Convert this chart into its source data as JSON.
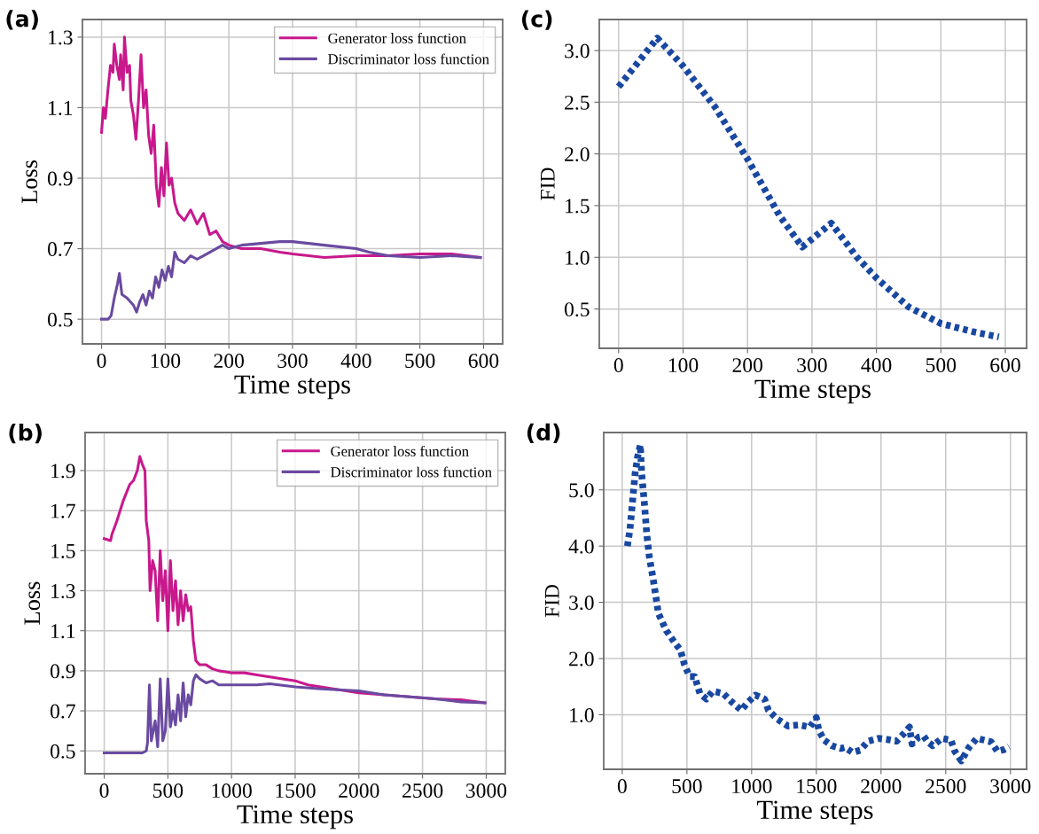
{
  "chart_data": [
    {
      "type": "line",
      "title": "(a)",
      "xlabel": "Time steps",
      "ylabel": "Loss",
      "xlim": [
        -30,
        630
      ],
      "ylim": [
        0.43,
        1.35
      ],
      "xticks": [
        0,
        100,
        200,
        300,
        400,
        500,
        600
      ],
      "yticks": [
        0.5,
        0.7,
        0.9,
        1.1,
        1.3
      ],
      "grid": true,
      "legend": "top right",
      "line_style": "solid",
      "series": [
        {
          "name": "Generator loss function",
          "color": "#c8188c",
          "x": [
            0,
            3,
            6,
            10,
            14,
            18,
            20,
            24,
            28,
            30,
            34,
            36,
            40,
            44,
            46,
            50,
            54,
            58,
            62,
            66,
            70,
            74,
            78,
            82,
            86,
            90,
            94,
            98,
            102,
            106,
            110,
            115,
            120,
            130,
            140,
            150,
            160,
            170,
            180,
            190,
            200,
            220,
            250,
            280,
            300,
            350,
            400,
            450,
            500,
            550,
            595
          ],
          "values": [
            1.03,
            1.1,
            1.07,
            1.15,
            1.22,
            1.2,
            1.28,
            1.22,
            1.18,
            1.25,
            1.15,
            1.3,
            1.2,
            1.22,
            1.12,
            1.08,
            1.01,
            1.12,
            1.25,
            1.1,
            1.15,
            1.02,
            0.97,
            1.05,
            0.88,
            0.82,
            0.93,
            0.85,
            1.0,
            0.88,
            0.9,
            0.83,
            0.8,
            0.78,
            0.81,
            0.77,
            0.8,
            0.74,
            0.75,
            0.72,
            0.71,
            0.7,
            0.7,
            0.69,
            0.685,
            0.675,
            0.68,
            0.68,
            0.685,
            0.685,
            0.675
          ]
        },
        {
          "name": "Discriminator loss function",
          "color": "#6a4aa0",
          "x": [
            0,
            10,
            15,
            20,
            25,
            28,
            32,
            40,
            50,
            55,
            60,
            65,
            70,
            75,
            80,
            85,
            90,
            95,
            100,
            105,
            110,
            115,
            120,
            130,
            140,
            150,
            160,
            170,
            180,
            190,
            200,
            220,
            250,
            280,
            300,
            350,
            400,
            420,
            450,
            500,
            550,
            595
          ],
          "values": [
            0.5,
            0.5,
            0.51,
            0.56,
            0.6,
            0.63,
            0.57,
            0.56,
            0.54,
            0.52,
            0.55,
            0.57,
            0.54,
            0.58,
            0.56,
            0.62,
            0.59,
            0.64,
            0.61,
            0.65,
            0.62,
            0.69,
            0.67,
            0.66,
            0.68,
            0.67,
            0.68,
            0.69,
            0.7,
            0.71,
            0.7,
            0.71,
            0.715,
            0.72,
            0.72,
            0.71,
            0.7,
            0.69,
            0.68,
            0.675,
            0.68,
            0.675
          ]
        }
      ]
    },
    {
      "type": "line",
      "title": "(c)",
      "xlabel": "Time steps",
      "ylabel": "FID",
      "xlim": [
        -30,
        633
      ],
      "ylim": [
        0.12,
        3.3
      ],
      "xticks": [
        0,
        100,
        200,
        300,
        400,
        500,
        600
      ],
      "yticks": [
        0.5,
        {
          "value": 1,
          "label": "1.0"
        },
        1.5,
        {
          "value": 2,
          "label": "2.0"
        },
        2.5,
        {
          "value": 3,
          "label": "3.0"
        }
      ],
      "grid": true,
      "line_style": "dotted",
      "series": [
        {
          "color": "#1848a0",
          "x": [
            0,
            60,
            100,
            150,
            200,
            250,
            285,
            330,
            370,
            400,
            450,
            500,
            550,
            590
          ],
          "values": [
            2.65,
            3.12,
            2.85,
            2.45,
            1.95,
            1.4,
            1.1,
            1.33,
            1.0,
            0.8,
            0.52,
            0.36,
            0.28,
            0.23
          ]
        }
      ]
    },
    {
      "type": "line",
      "title": "(b)",
      "xlabel": "Time steps",
      "ylabel": "Loss",
      "xlim": [
        -150,
        3150
      ],
      "ylim": [
        0.386,
        2.09
      ],
      "xticks": [
        0,
        500,
        1000,
        1500,
        2000,
        2500,
        3000
      ],
      "yticks": [
        0.5,
        0.7,
        0.9,
        1.1,
        1.3,
        1.5,
        1.7,
        1.9
      ],
      "grid": true,
      "legend": "top right",
      "line_style": "solid",
      "series": [
        {
          "name": "Generator loss function",
          "color": "#c8188c",
          "x": [
            0,
            50,
            60,
            100,
            150,
            200,
            230,
            260,
            280,
            300,
            320,
            330,
            350,
            360,
            380,
            400,
            420,
            440,
            460,
            480,
            500,
            520,
            540,
            560,
            580,
            600,
            620,
            640,
            660,
            680,
            700,
            720,
            750,
            800,
            850,
            900,
            1000,
            1100,
            1200,
            1300,
            1400,
            1500,
            1600,
            1700,
            1800,
            2000,
            2200,
            2400,
            2600,
            2800,
            2990
          ],
          "values": [
            1.56,
            1.55,
            1.58,
            1.65,
            1.75,
            1.83,
            1.85,
            1.9,
            1.97,
            1.93,
            1.9,
            1.65,
            1.55,
            1.3,
            1.45,
            1.4,
            1.15,
            1.5,
            1.25,
            1.4,
            1.1,
            1.45,
            1.2,
            1.35,
            1.13,
            1.3,
            1.15,
            1.28,
            1.2,
            1.22,
            1.05,
            0.95,
            0.93,
            0.93,
            0.91,
            0.9,
            0.89,
            0.89,
            0.88,
            0.87,
            0.86,
            0.85,
            0.83,
            0.82,
            0.81,
            0.79,
            0.78,
            0.77,
            0.76,
            0.755,
            0.74
          ]
        },
        {
          "name": "Discriminator loss function",
          "color": "#6a4aa0",
          "x": [
            0,
            100,
            200,
            300,
            330,
            340,
            355,
            370,
            400,
            420,
            440,
            460,
            480,
            500,
            520,
            540,
            560,
            580,
            600,
            620,
            640,
            660,
            680,
            700,
            720,
            750,
            800,
            850,
            900,
            1000,
            1200,
            1300,
            1500,
            1700,
            2000,
            2200,
            2400,
            2600,
            2800,
            2990
          ],
          "values": [
            0.49,
            0.49,
            0.49,
            0.49,
            0.5,
            0.54,
            0.83,
            0.55,
            0.65,
            0.52,
            0.86,
            0.55,
            0.6,
            0.86,
            0.62,
            0.7,
            0.63,
            0.78,
            0.65,
            0.84,
            0.67,
            0.78,
            0.73,
            0.85,
            0.88,
            0.86,
            0.84,
            0.85,
            0.83,
            0.83,
            0.83,
            0.835,
            0.82,
            0.81,
            0.8,
            0.78,
            0.77,
            0.76,
            0.745,
            0.74
          ]
        }
      ]
    },
    {
      "type": "line",
      "title": "(d)",
      "xlabel": "Time steps",
      "ylabel": "FID",
      "xlim": [
        -143,
        3125
      ],
      "ylim": [
        0.03,
        6.02
      ],
      "xticks": [
        0,
        500,
        1000,
        1500,
        2000,
        2500,
        3000
      ],
      "yticks": [
        {
          "value": 1,
          "label": "1.0"
        },
        {
          "value": 2,
          "label": "2.0"
        },
        {
          "value": 3,
          "label": "3.0"
        },
        {
          "value": 4,
          "label": "4.0"
        },
        {
          "value": 5,
          "label": "5.0"
        }
      ],
      "grid": true,
      "line_style": "dotted",
      "series": [
        {
          "color": "#1848a0",
          "x": [
            40,
            60,
            80,
            100,
            120,
            140,
            150,
            170,
            190,
            210,
            240,
            280,
            340,
            400,
            450,
            480,
            520,
            560,
            600,
            650,
            700,
            780,
            850,
            920,
            970,
            1030,
            1100,
            1130,
            1200,
            1280,
            1370,
            1450,
            1500,
            1520,
            1560,
            1620,
            1690,
            1720,
            1780,
            1840,
            1900,
            1980,
            2050,
            2120,
            2170,
            2220,
            2240,
            2290,
            2330,
            2360,
            2400,
            2470,
            2540,
            2570,
            2620,
            2680,
            2740,
            2850,
            2900,
            2950,
            2990
          ],
          "values": [
            4.0,
            4.3,
            4.8,
            5.3,
            5.6,
            5.8,
            5.3,
            4.8,
            4.2,
            3.8,
            3.4,
            2.8,
            2.5,
            2.3,
            2.15,
            1.9,
            1.68,
            1.68,
            1.38,
            1.28,
            1.42,
            1.38,
            1.22,
            1.08,
            1.22,
            1.35,
            1.28,
            1.08,
            0.92,
            0.8,
            0.82,
            0.78,
            0.95,
            0.72,
            0.55,
            0.45,
            0.4,
            0.42,
            0.33,
            0.37,
            0.53,
            0.58,
            0.56,
            0.53,
            0.65,
            0.78,
            0.48,
            0.6,
            0.62,
            0.52,
            0.45,
            0.58,
            0.55,
            0.35,
            0.18,
            0.42,
            0.58,
            0.52,
            0.35,
            0.38,
            0.43
          ]
        }
      ]
    }
  ]
}
